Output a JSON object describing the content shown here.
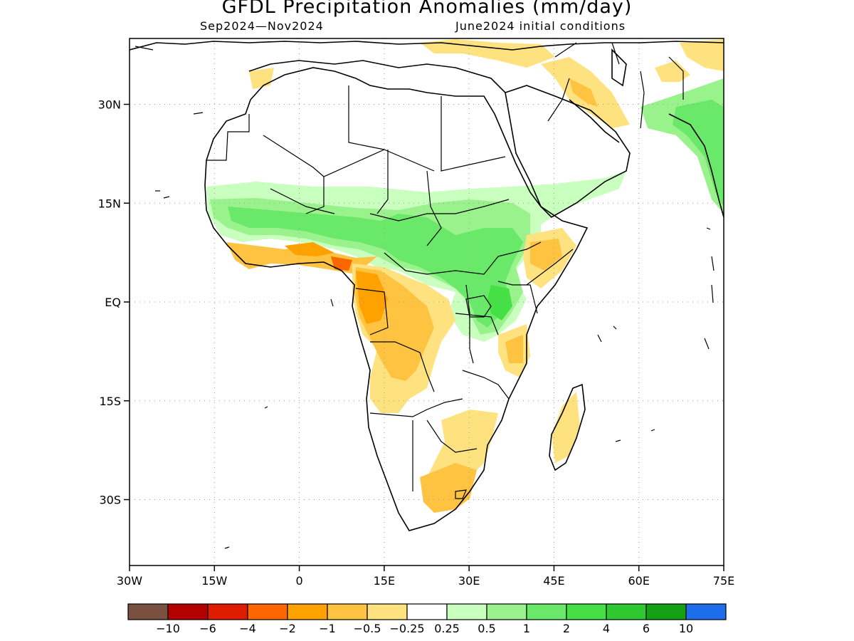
{
  "title": "GFDL Precipitation Anomalies (mm/day)",
  "subtitle_left": "Sep2024—Nov2024",
  "subtitle_right": "June2024 initial conditions",
  "map": {
    "lon_ticks": [
      {
        "value": -30,
        "label": "30W"
      },
      {
        "value": -15,
        "label": "15W"
      },
      {
        "value": 0,
        "label": "0"
      },
      {
        "value": 15,
        "label": "15E"
      },
      {
        "value": 30,
        "label": "30E"
      },
      {
        "value": 45,
        "label": "45E"
      },
      {
        "value": 60,
        "label": "60E"
      },
      {
        "value": 75,
        "label": "75E"
      }
    ],
    "lat_ticks": [
      {
        "value": 30,
        "label": "30N"
      },
      {
        "value": 15,
        "label": "15N"
      },
      {
        "value": 0,
        "label": "EQ"
      },
      {
        "value": -15,
        "label": "15S"
      },
      {
        "value": -30,
        "label": "30S"
      }
    ],
    "lon_range": [
      -30,
      75
    ],
    "lat_range": [
      -40,
      40
    ],
    "grid": true
  },
  "legend": {
    "colors": [
      "#7a5040",
      "#b40000",
      "#e01c00",
      "#ff6600",
      "#ffa200",
      "#ffc342",
      "#ffe280",
      "#ffffff",
      "#c9ffbf",
      "#99f28c",
      "#6ae86a",
      "#45e045",
      "#30c830",
      "#14a014",
      "#1e6eeb"
    ],
    "labels": [
      "−10",
      "−6",
      "−4",
      "−2",
      "−1",
      "−0.5",
      "−0.25",
      "0.25",
      "0.5",
      "1",
      "2",
      "4",
      "6",
      "10"
    ]
  }
}
